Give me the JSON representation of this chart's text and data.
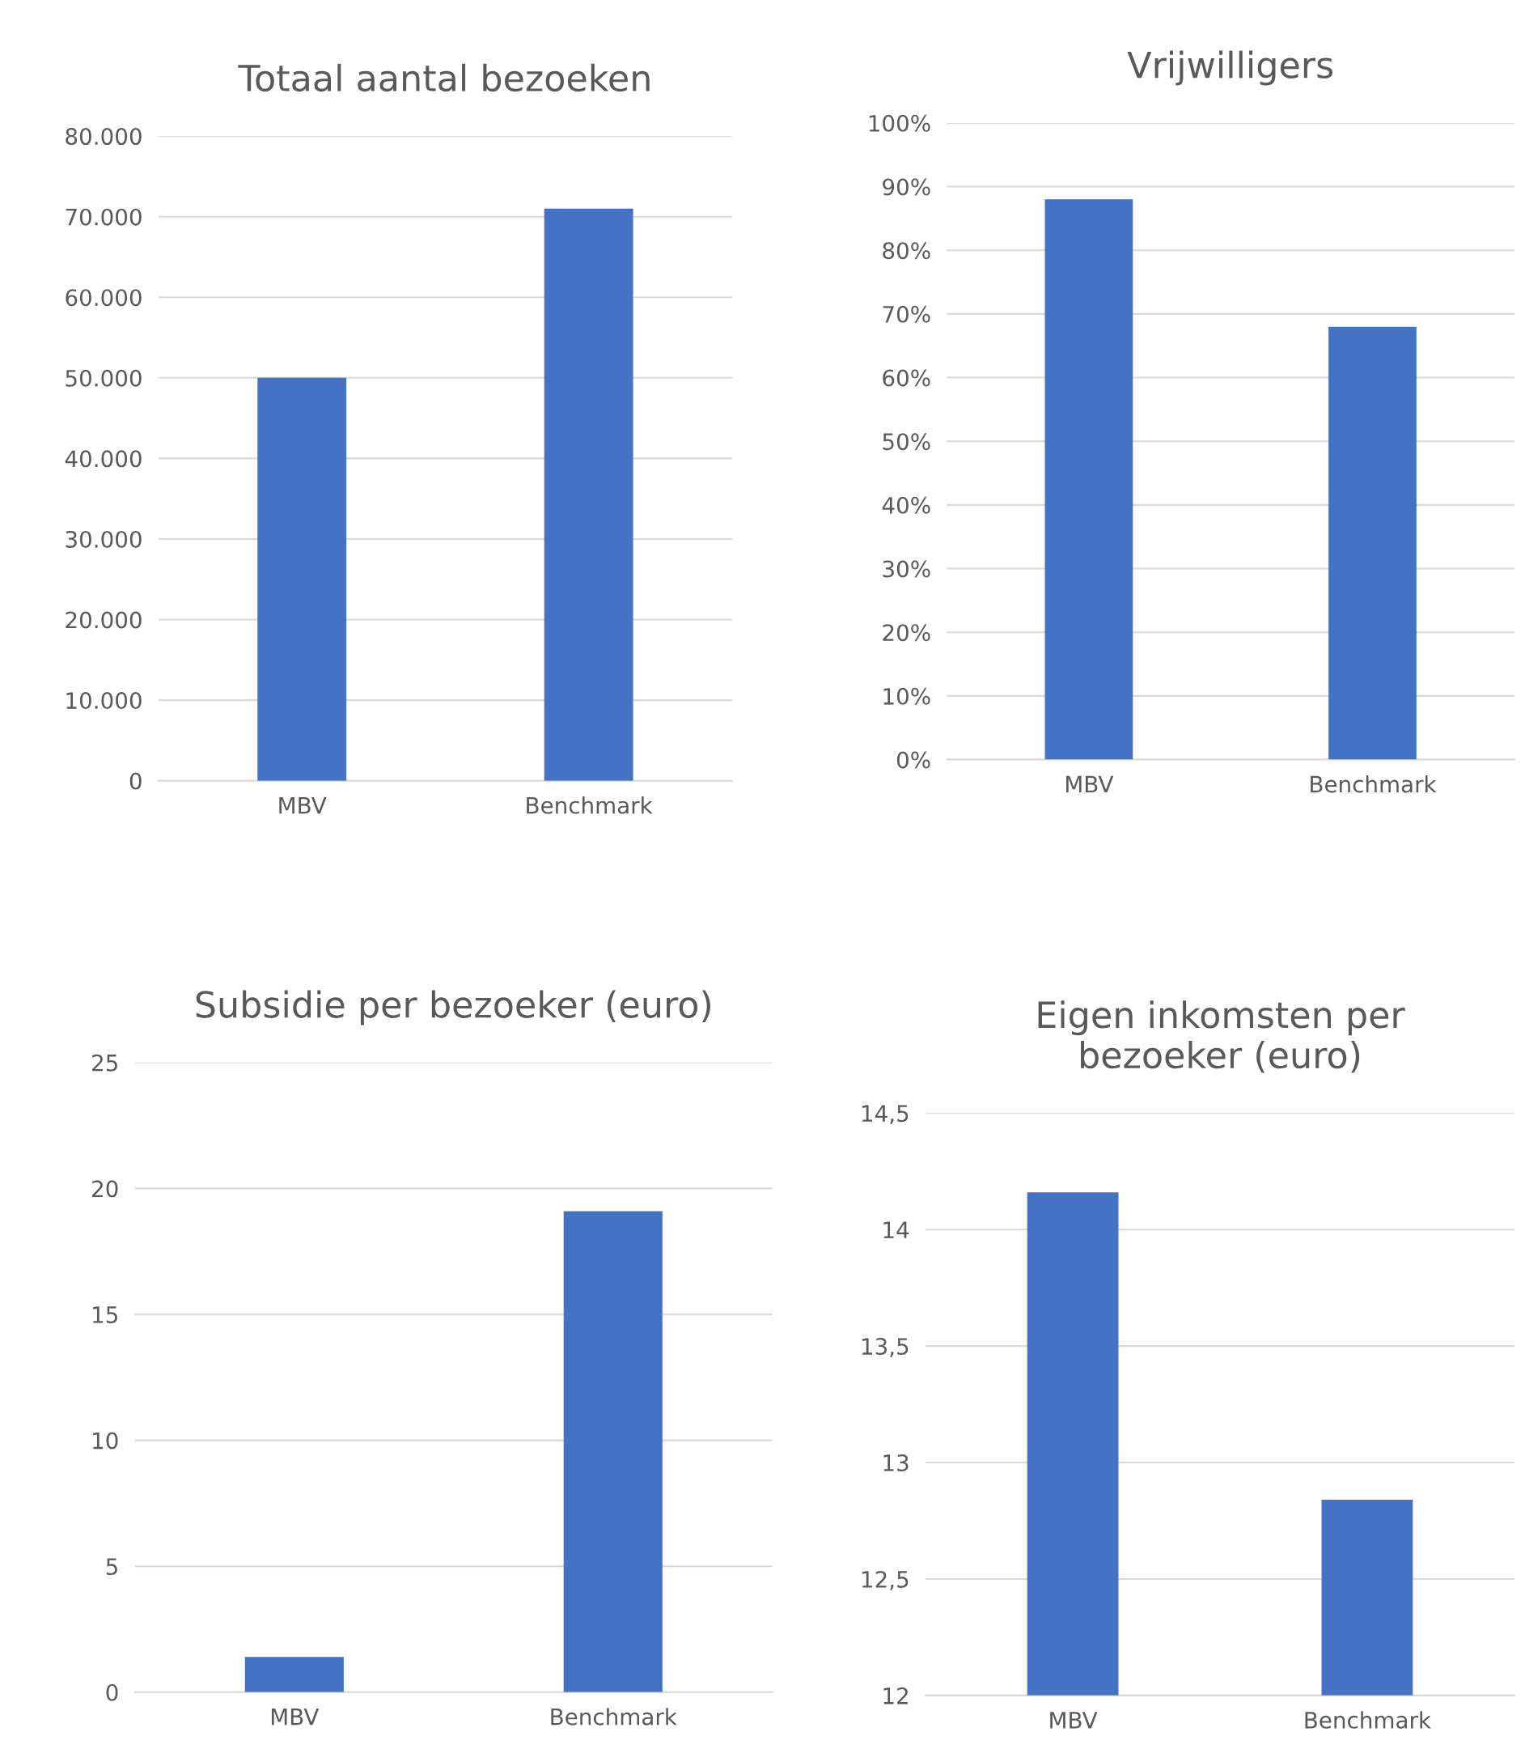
{
  "chart_data": [
    {
      "type": "bar",
      "title": "Totaal aantal bezoeken",
      "categories": [
        "MBV",
        "Benchmark"
      ],
      "values": [
        50000,
        71000
      ],
      "color": "#4472c4",
      "ylim": [
        0,
        80000
      ],
      "yticks": [
        {
          "value": 0,
          "label": "0"
        },
        {
          "value": 10000,
          "label": "10.000"
        },
        {
          "value": 20000,
          "label": "20.000"
        },
        {
          "value": 30000,
          "label": "30.000"
        },
        {
          "value": 40000,
          "label": "40.000"
        },
        {
          "value": 50000,
          "label": "50.000"
        },
        {
          "value": 60000,
          "label": "60.000"
        },
        {
          "value": 70000,
          "label": "70.000"
        },
        {
          "value": 80000,
          "label": "80.000"
        }
      ],
      "grid": "y",
      "legend": false
    },
    {
      "type": "bar",
      "title": "Vrijwilligers",
      "categories": [
        "MBV",
        "Benchmark"
      ],
      "values": [
        88,
        68
      ],
      "color": "#4472c4",
      "ylim": [
        0,
        100
      ],
      "yticks": [
        {
          "value": 0,
          "label": "0%"
        },
        {
          "value": 10,
          "label": "10%"
        },
        {
          "value": 20,
          "label": "20%"
        },
        {
          "value": 30,
          "label": "30%"
        },
        {
          "value": 40,
          "label": "40%"
        },
        {
          "value": 50,
          "label": "50%"
        },
        {
          "value": 60,
          "label": "60%"
        },
        {
          "value": 70,
          "label": "70%"
        },
        {
          "value": 80,
          "label": "80%"
        },
        {
          "value": 90,
          "label": "90%"
        },
        {
          "value": 100,
          "label": "100%"
        }
      ],
      "grid": "y",
      "legend": false
    },
    {
      "type": "bar",
      "title": "Subsidie per bezoeker (euro)",
      "categories": [
        "MBV",
        "Benchmark"
      ],
      "values": [
        1.4,
        19.1
      ],
      "color": "#4472c4",
      "ylim": [
        0,
        25
      ],
      "yticks": [
        0,
        5,
        10,
        15,
        20,
        25
      ],
      "grid": "y",
      "legend": false
    },
    {
      "type": "bar",
      "title": "Eigen inkomsten per\nbezoeker (euro)",
      "categories": [
        "MBV",
        "Benchmark"
      ],
      "values": [
        14.16,
        12.84
      ],
      "color": "#4472c4",
      "ylim": [
        12,
        14.5
      ],
      "yticks": [
        12,
        {
          "value": 12.5,
          "label": "12,5"
        },
        13,
        {
          "value": 13.5,
          "label": "13,5"
        },
        14,
        {
          "value": 14.5,
          "label": "14,5"
        }
      ],
      "grid": "y",
      "legend": false
    }
  ]
}
